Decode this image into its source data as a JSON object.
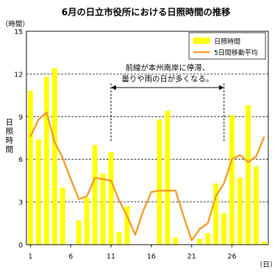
{
  "chart_data": {
    "type": "bar",
    "title": "6月の日立市役所における日照時間の推移",
    "ylabel_unit": "（時間）",
    "ylabel": "日照時間",
    "xlabel_unit": "（日）",
    "ylim": [
      0,
      15
    ],
    "yticks": [
      0,
      3,
      6,
      9,
      12,
      15
    ],
    "xticks": [
      1,
      6,
      11,
      16,
      21,
      26
    ],
    "x": [
      1,
      2,
      3,
      4,
      5,
      6,
      7,
      8,
      9,
      10,
      11,
      12,
      13,
      14,
      15,
      16,
      17,
      18,
      19,
      20,
      21,
      22,
      23,
      24,
      25,
      26,
      27,
      28,
      29,
      30
    ],
    "grid": "horizontal-dashed",
    "legend_position": "top-right",
    "series": [
      {
        "name": "日照時間",
        "kind": "bar",
        "color": "#ffff00",
        "values": [
          10.8,
          7.4,
          11.8,
          12.4,
          4.0,
          0.0,
          1.7,
          3.3,
          7.0,
          5.0,
          6.5,
          0.9,
          2.7,
          0.0,
          0.0,
          0.0,
          8.8,
          9.4,
          0.5,
          0.0,
          0.0,
          0.4,
          0.8,
          4.3,
          2.2,
          9.1,
          4.7,
          9.8,
          5.5,
          0.2
        ]
      },
      {
        "name": "5日間移動平均",
        "kind": "line",
        "color": "#f59a23",
        "values": [
          7.6,
          8.8,
          9.3,
          7.2,
          6.1,
          4.6,
          3.2,
          3.4,
          4.7,
          4.6,
          4.5,
          3.1,
          2.0,
          0.7,
          2.4,
          3.7,
          3.8,
          3.8,
          3.8,
          2.0,
          0.3,
          1.1,
          1.5,
          3.4,
          4.3,
          6.0,
          6.3,
          5.8,
          6.2,
          7.6
        ]
      }
    ],
    "annotation": {
      "lines": [
        "前線が本州南岸に停滞、",
        "曇りや雨の日が多くなる。"
      ],
      "from_day": 11,
      "to_day": 25
    }
  }
}
